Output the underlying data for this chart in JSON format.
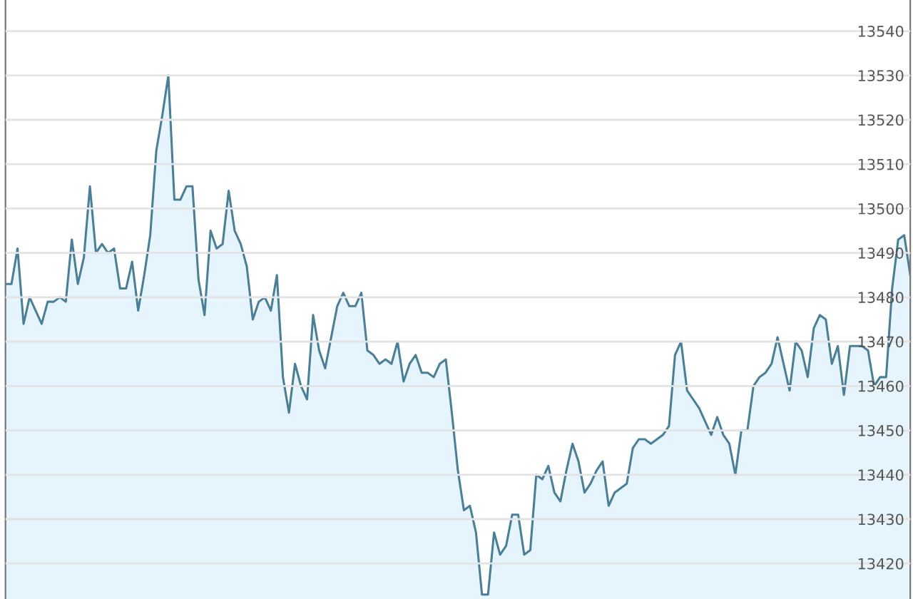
{
  "chart_data": {
    "type": "area",
    "relative": false,
    "categories": [
      null,
      null,
      null,
      null,
      null,
      null,
      null,
      null,
      null,
      null,
      null,
      null,
      null,
      null,
      null,
      null,
      null,
      null,
      null,
      null,
      null,
      null,
      null,
      null,
      null,
      null,
      null,
      null,
      null,
      null,
      null,
      null,
      null,
      null,
      null,
      null,
      null,
      null,
      null,
      null,
      null,
      null,
      null,
      null,
      null,
      null,
      null,
      null,
      null,
      null,
      null,
      null,
      null,
      null,
      null,
      null,
      null,
      null,
      null,
      null,
      null,
      null,
      null,
      null,
      null,
      null,
      null,
      null,
      null,
      null,
      null,
      null,
      null,
      null,
      null,
      null,
      null,
      null,
      null,
      null,
      null,
      null,
      null,
      null,
      null,
      null,
      null,
      null,
      null,
      null,
      null,
      null,
      null,
      null,
      null,
      null,
      null,
      null,
      null,
      null,
      null,
      null,
      null,
      null,
      null,
      null,
      null,
      null,
      null,
      null,
      null,
      null,
      null,
      null,
      null,
      null,
      null,
      null,
      null,
      null,
      null,
      null,
      null,
      null,
      null,
      null,
      null,
      null,
      null,
      null,
      null,
      null,
      null,
      null,
      null,
      null,
      null,
      null,
      null,
      null,
      null,
      null,
      null,
      null,
      null,
      null,
      null,
      null,
      null,
      null,
      null
    ],
    "series": [
      {
        "color": "#4a7f99",
        "values": [
          13483,
          13483,
          13491,
          13474,
          13480,
          13477,
          13474,
          13479,
          13479,
          13480,
          13479,
          13493,
          13483,
          13489,
          13505,
          13490,
          13492,
          13490,
          13491,
          13482,
          13482,
          13488,
          13477,
          13485,
          13494,
          13513,
          13521,
          13530,
          13502,
          13502,
          13505,
          13505,
          13484,
          13476,
          13495,
          13491,
          13492,
          13504,
          13495,
          13492,
          13487,
          13475,
          13479,
          13480,
          13477,
          13485,
          13462,
          13454,
          13465,
          13460,
          13457,
          13476,
          13468,
          13464,
          13471,
          13478,
          13481,
          13478,
          13478,
          13481,
          13468,
          13467,
          13465,
          13466,
          13465,
          13470,
          13461,
          13465,
          13467,
          13463,
          13463,
          13462,
          13465,
          13466,
          13454,
          13441,
          13432,
          13433,
          13427,
          13413,
          13413,
          13427,
          13422,
          13424,
          13431,
          13431,
          13422,
          13423,
          13440,
          13439,
          13442,
          13436,
          13434,
          13441,
          13447,
          13443,
          13436,
          13438,
          13441,
          13443,
          13433,
          13436,
          13437,
          13438,
          13446,
          13448,
          13448,
          13447,
          13448,
          13449,
          13451,
          13467,
          13470,
          13459,
          13457,
          13455,
          13452,
          13449,
          13453,
          13449,
          13447,
          13440,
          13450,
          13450,
          13460,
          13462,
          13463,
          13465,
          13471,
          13465,
          13459,
          13470,
          13468,
          13462,
          13473,
          13476,
          13475,
          13465,
          13469,
          13458,
          13469,
          13469,
          13469,
          13468,
          13460,
          13462,
          13462,
          13482,
          13493,
          13494,
          13485
        ]
      }
    ],
    "ylim": [
      13412,
      13547
    ],
    "yticks": [
      13420,
      13430,
      13440,
      13450,
      13460,
      13470,
      13480,
      13490,
      13500,
      13510,
      13520,
      13530,
      13540
    ],
    "grid": "y",
    "legend": false
  }
}
